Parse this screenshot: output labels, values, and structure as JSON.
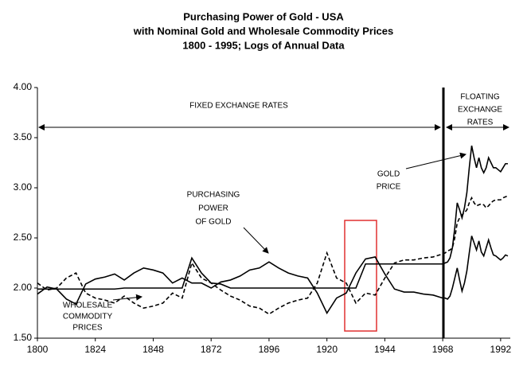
{
  "chart_data": {
    "type": "line",
    "title": [
      "Purchasing Power of Gold - USA",
      "with Nominal Gold and Wholesale Commodity Prices",
      "1800 - 1995; Logs of Annual Data"
    ],
    "x": [
      1800,
      1804,
      1808,
      1812,
      1816,
      1820,
      1824,
      1828,
      1832,
      1836,
      1840,
      1844,
      1848,
      1852,
      1856,
      1860,
      1864,
      1868,
      1872,
      1876,
      1880,
      1884,
      1888,
      1892,
      1896,
      1900,
      1904,
      1908,
      1912,
      1916,
      1920,
      1924,
      1928,
      1932,
      1936,
      1940,
      1944,
      1948,
      1952,
      1956,
      1960,
      1964,
      1968,
      1969,
      1970,
      1971,
      1972,
      1973,
      1974,
      1975,
      1976,
      1977,
      1978,
      1979,
      1980,
      1981,
      1982,
      1983,
      1984,
      1985,
      1986,
      1987,
      1988,
      1989,
      1990,
      1991,
      1992,
      1993,
      1994,
      1995
    ],
    "series": [
      {
        "name": "GOLD PRICE",
        "color": "#000000",
        "style": "solid",
        "values": [
          1.99,
          1.99,
          1.99,
          1.99,
          1.99,
          1.99,
          1.99,
          1.99,
          1.99,
          2.0,
          2.0,
          2.0,
          2.0,
          2.0,
          2.0,
          2.0,
          2.3,
          2.15,
          2.05,
          2.04,
          2.0,
          2.0,
          2.0,
          2.0,
          2.0,
          2.0,
          2.0,
          2.0,
          2.0,
          2.0,
          2.0,
          2.0,
          2.0,
          2.0,
          2.24,
          2.24,
          2.24,
          2.24,
          2.24,
          2.24,
          2.24,
          2.24,
          2.24,
          2.25,
          2.26,
          2.3,
          2.4,
          2.6,
          2.85,
          2.78,
          2.7,
          2.8,
          2.95,
          3.2,
          3.42,
          3.3,
          3.2,
          3.3,
          3.2,
          3.15,
          3.2,
          3.3,
          3.25,
          3.2,
          3.2,
          3.18,
          3.16,
          3.2,
          3.24,
          3.24
        ]
      },
      {
        "name": "PURCHASING POWER OF GOLD",
        "color": "#000000",
        "style": "solid",
        "values": [
          1.94,
          2.01,
          1.99,
          1.89,
          1.84,
          2.04,
          2.09,
          2.11,
          2.14,
          2.08,
          2.15,
          2.2,
          2.18,
          2.15,
          2.05,
          2.1,
          2.05,
          2.05,
          2.0,
          2.06,
          2.08,
          2.12,
          2.18,
          2.2,
          2.26,
          2.2,
          2.15,
          2.12,
          2.1,
          1.95,
          1.75,
          1.9,
          1.95,
          2.15,
          2.29,
          2.31,
          2.14,
          1.99,
          1.96,
          1.96,
          1.94,
          1.93,
          1.9,
          1.9,
          1.89,
          1.92,
          2.0,
          2.1,
          2.2,
          2.08,
          1.97,
          2.05,
          2.17,
          2.35,
          2.52,
          2.45,
          2.38,
          2.47,
          2.36,
          2.32,
          2.4,
          2.48,
          2.4,
          2.33,
          2.32,
          2.3,
          2.28,
          2.3,
          2.33,
          2.32
        ]
      },
      {
        "name": "WHOLESALE COMMODITY PRICES",
        "color": "#000000",
        "style": "dashed",
        "values": [
          2.05,
          1.98,
          2.0,
          2.1,
          2.15,
          1.95,
          1.9,
          1.88,
          1.85,
          1.92,
          1.85,
          1.8,
          1.82,
          1.85,
          1.95,
          1.9,
          2.25,
          2.1,
          2.05,
          1.98,
          1.92,
          1.88,
          1.82,
          1.8,
          1.74,
          1.8,
          1.85,
          1.88,
          1.9,
          2.05,
          2.35,
          2.1,
          2.05,
          1.85,
          1.95,
          1.93,
          2.1,
          2.25,
          2.28,
          2.28,
          2.3,
          2.31,
          2.34,
          2.35,
          2.37,
          2.38,
          2.4,
          2.5,
          2.65,
          2.7,
          2.73,
          2.75,
          2.78,
          2.85,
          2.9,
          2.85,
          2.82,
          2.83,
          2.84,
          2.83,
          2.8,
          2.82,
          2.85,
          2.87,
          2.88,
          2.88,
          2.88,
          2.9,
          2.91,
          2.92
        ]
      }
    ],
    "xlim": [
      1800,
      1996
    ],
    "ylim": [
      1.5,
      4.0
    ],
    "xticks": [
      1800,
      1824,
      1848,
      1872,
      1896,
      1920,
      1944,
      1968,
      1992
    ],
    "yticks": [
      {
        "value": 1.5,
        "label": "1.50"
      },
      {
        "value": 2.0,
        "label": "2.00"
      },
      {
        "value": 2.5,
        "label": "2.50"
      },
      {
        "value": 3.0,
        "label": "3.00"
      },
      {
        "value": 3.5,
        "label": "3.50"
      },
      {
        "value": 4.0,
        "label": "4.00"
      }
    ],
    "annotations": [
      {
        "lines": [
          "FIXED EXCHANGE RATES"
        ]
      },
      {
        "lines": [
          "FLOATING",
          "EXCHANGE",
          "RATES"
        ]
      },
      {
        "lines": [
          "GOLD",
          "PRICE"
        ]
      },
      {
        "lines": [
          "PURCHASING",
          "POWER",
          "OF GOLD"
        ]
      },
      {
        "lines": [
          "WHOLESALE",
          "COMMODITY",
          "PRICES"
        ]
      }
    ]
  }
}
